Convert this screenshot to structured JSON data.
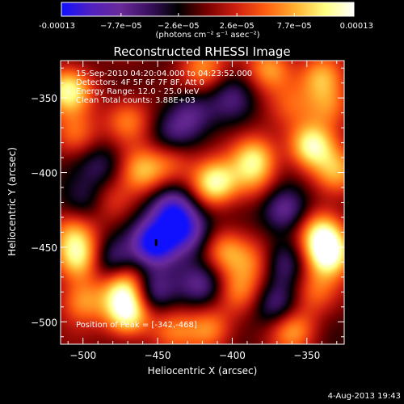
{
  "chart_data": {
    "type": "heatmap",
    "title": "Reconstructed RHESSI Image",
    "xlabel": "Heliocentric X (arcsec)",
    "ylabel": "Heliocentric Y (arcsec)",
    "xlim": [
      -515,
      -325
    ],
    "ylim": [
      -515,
      -325
    ],
    "x_ticks": [
      -500,
      -450,
      -400,
      -350
    ],
    "y_ticks": [
      -350,
      -400,
      -450,
      -500
    ],
    "colorbar": {
      "min": -0.00013,
      "max": 0.00013,
      "tick_values": [
        -0.00013,
        -7.7e-05,
        -2.6e-05,
        2.6e-05,
        7.7e-05,
        0.00013
      ],
      "tick_labels": [
        "-0.00013",
        "−7.7e−05",
        "−2.6e−05",
        "2.6e−05",
        "7.7e−05",
        "0.00013"
      ],
      "unit_label": "(photons cm⁻² s⁻¹ asec⁻²)",
      "colors": [
        "#1010ff",
        "#5020c0",
        "#6a2a9a",
        "#3a1060",
        "#000000",
        "#7a0000",
        "#d02010",
        "#ff6010",
        "#ffb030",
        "#ffff80",
        "#ffffff"
      ]
    },
    "annotations": [
      "15-Sep-2010 04:20:04.000 to 04:23:52.000",
      "Detectors: 4F 5F 6F 7F 8F, Att 0",
      "Energy Range: 12.0 - 25.0 keV",
      "Clean     Total counts: 3.88E+03"
    ],
    "peak_label": "Position of Peak = [-342,-468]",
    "peak_marker": {
      "x": -451,
      "y": -447
    },
    "blobs": [
      {
        "x": -470,
        "y": -494,
        "v": 1.0
      },
      {
        "x": -472,
        "y": -476,
        "v": 0.8
      },
      {
        "x": -500,
        "y": -486,
        "v": 0.55
      },
      {
        "x": -503,
        "y": -458,
        "v": 0.8
      },
      {
        "x": -506,
        "y": -441,
        "v": 0.5
      },
      {
        "x": -460,
        "y": -399,
        "v": 0.6
      },
      {
        "x": -480,
        "y": -420,
        "v": 0.35
      },
      {
        "x": -440,
        "y": -392,
        "v": 0.45
      },
      {
        "x": -510,
        "y": -345,
        "v": 0.85
      },
      {
        "x": -505,
        "y": -375,
        "v": 0.45
      },
      {
        "x": -470,
        "y": -365,
        "v": 0.55
      },
      {
        "x": -420,
        "y": -330,
        "v": 0.55
      },
      {
        "x": -375,
        "y": -330,
        "v": 0.6
      },
      {
        "x": -340,
        "y": -336,
        "v": 0.6
      },
      {
        "x": -335,
        "y": -356,
        "v": 0.5
      },
      {
        "x": -360,
        "y": -355,
        "v": 0.3
      },
      {
        "x": -347,
        "y": -382,
        "v": 0.9
      },
      {
        "x": -330,
        "y": -400,
        "v": 0.55
      },
      {
        "x": -385,
        "y": -390,
        "v": 0.7
      },
      {
        "x": -412,
        "y": -407,
        "v": 0.9
      },
      {
        "x": -385,
        "y": -405,
        "v": 0.35
      },
      {
        "x": -340,
        "y": -440,
        "v": 0.8
      },
      {
        "x": -336,
        "y": -455,
        "v": 0.95
      },
      {
        "x": -345,
        "y": -480,
        "v": 0.4
      },
      {
        "x": -405,
        "y": -452,
        "v": 0.55
      },
      {
        "x": -385,
        "y": -460,
        "v": 0.4
      },
      {
        "x": -395,
        "y": -480,
        "v": 0.45
      },
      {
        "x": -415,
        "y": -505,
        "v": 0.55
      },
      {
        "x": -360,
        "y": -505,
        "v": 0.6
      },
      {
        "x": -440,
        "y": -505,
        "v": 0.4
      },
      {
        "x": -452,
        "y": -447,
        "v": -1.0
      },
      {
        "x": -440,
        "y": -425,
        "v": -0.8
      },
      {
        "x": -430,
        "y": -440,
        "v": -0.65
      },
      {
        "x": -480,
        "y": -460,
        "v": -0.55
      },
      {
        "x": -455,
        "y": -480,
        "v": -0.6
      },
      {
        "x": -420,
        "y": -475,
        "v": -0.5
      },
      {
        "x": -428,
        "y": -360,
        "v": -0.45
      },
      {
        "x": -440,
        "y": -375,
        "v": -0.4
      },
      {
        "x": -500,
        "y": -420,
        "v": -0.35
      },
      {
        "x": -365,
        "y": -425,
        "v": -0.6
      },
      {
        "x": -370,
        "y": -490,
        "v": -0.5
      },
      {
        "x": -400,
        "y": -350,
        "v": -0.35
      },
      {
        "x": -487,
        "y": -395,
        "v": -0.35
      },
      {
        "x": -365,
        "y": -460,
        "v": -0.4
      }
    ]
  },
  "footer": {
    "timestamp": "4-Aug-2013 19:43"
  }
}
